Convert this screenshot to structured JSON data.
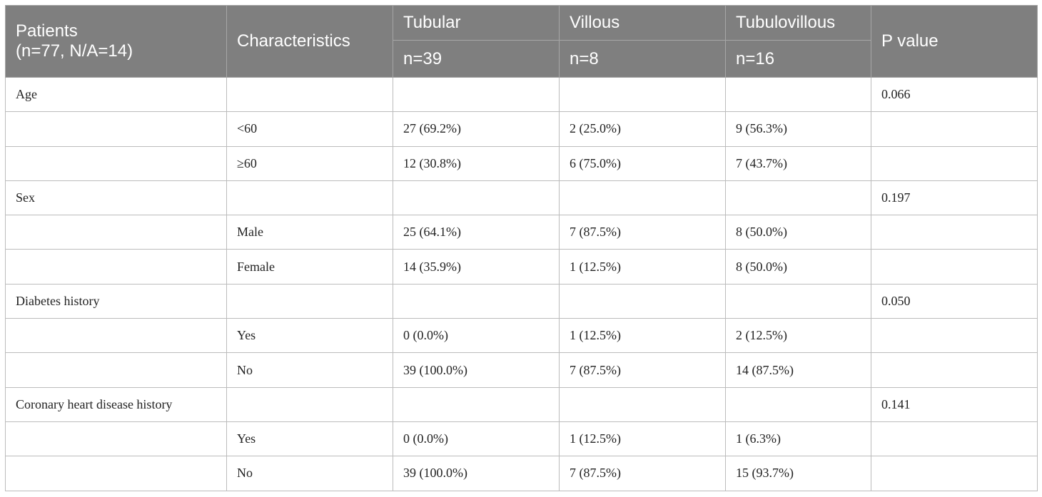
{
  "table": {
    "header": {
      "patients_line1": "Patients",
      "patients_line2": "(n=77, N/A=14)",
      "characteristics": "Characteristics",
      "tubular": "Tubular",
      "tubular_n": "n=39",
      "villous": "Villous",
      "villous_n": "n=8",
      "tubulovillous": "Tubulovillous",
      "tubulovillous_n": "n=16",
      "p_value": "P value"
    },
    "rows": [
      [
        "Age",
        "",
        "",
        "",
        "",
        "0.066"
      ],
      [
        "",
        "<60",
        "27 (69.2%)",
        "2 (25.0%)",
        "9 (56.3%)",
        ""
      ],
      [
        "",
        "≥60",
        "12 (30.8%)",
        "6 (75.0%)",
        "7 (43.7%)",
        ""
      ],
      [
        "Sex",
        "",
        "",
        "",
        "",
        "0.197"
      ],
      [
        "",
        "Male",
        "25 (64.1%)",
        "7 (87.5%)",
        "8 (50.0%)",
        ""
      ],
      [
        "",
        "Female",
        "14 (35.9%)",
        "1 (12.5%)",
        "8 (50.0%)",
        ""
      ],
      [
        "Diabetes history",
        "",
        "",
        "",
        "",
        "0.050"
      ],
      [
        "",
        "Yes",
        "0 (0.0%)",
        "1 (12.5%)",
        "2 (12.5%)",
        ""
      ],
      [
        "",
        "No",
        "39 (100.0%)",
        "7 (87.5%)",
        "14 (87.5%)",
        ""
      ],
      [
        "Coronary heart disease history",
        "",
        "",
        "",
        "",
        "0.141"
      ],
      [
        "",
        "Yes",
        "0 (0.0%)",
        "1 (12.5%)",
        "1 (6.3%)",
        ""
      ],
      [
        "",
        "No",
        "39 (100.0%)",
        "7 (87.5%)",
        "15 (93.7%)",
        ""
      ]
    ]
  },
  "colors": {
    "header_background": "#7f7f7f",
    "header_text": "#ffffff",
    "grid_line": "#bcbcbc"
  }
}
